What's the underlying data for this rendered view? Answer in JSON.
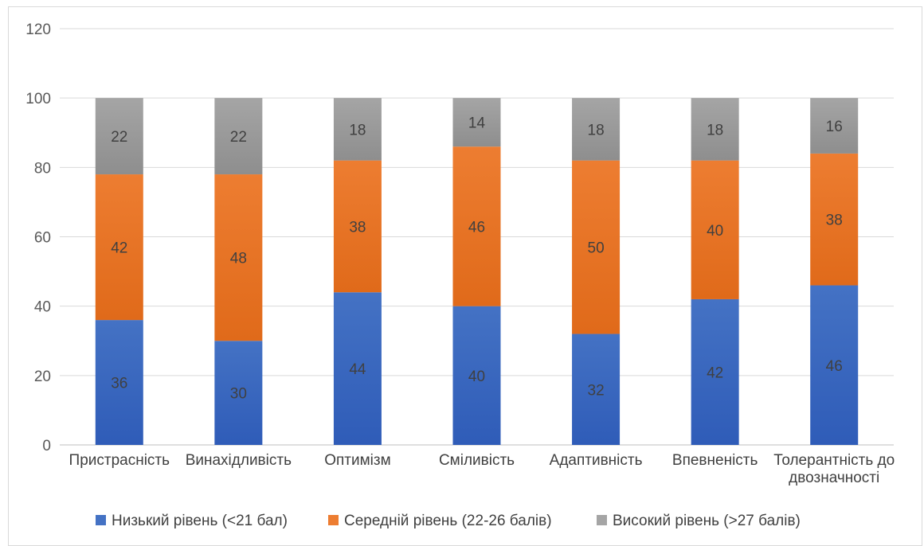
{
  "chart_data": {
    "type": "bar",
    "stacked": true,
    "categories": [
      [
        "Пристрасність"
      ],
      [
        "Винахідливість"
      ],
      [
        "Оптимізм"
      ],
      [
        "Сміливість"
      ],
      [
        "Адаптивність"
      ],
      [
        "Впевненість"
      ],
      [
        "Толерантність до",
        "двозначності"
      ]
    ],
    "series": [
      {
        "name": "Низький рівень (<21 бал)",
        "values": [
          36,
          30,
          44,
          40,
          32,
          42,
          46
        ],
        "color": "#4472c4",
        "color_dark": "#2f5cb8"
      },
      {
        "name": "Середній рівень (22-26 балів)",
        "values": [
          42,
          48,
          38,
          46,
          50,
          40,
          38
        ],
        "color": "#ed7d31",
        "color_dark": "#e06a1a"
      },
      {
        "name": "Високий рівень (>27 балів)",
        "values": [
          22,
          22,
          18,
          14,
          18,
          18,
          16
        ],
        "color": "#a5a5a5",
        "color_dark": "#8e8e8e"
      }
    ],
    "y_ticks": [
      0,
      20,
      40,
      60,
      80,
      100,
      120
    ],
    "ylim": [
      0,
      120
    ],
    "grid": true,
    "legend": "bottom"
  }
}
